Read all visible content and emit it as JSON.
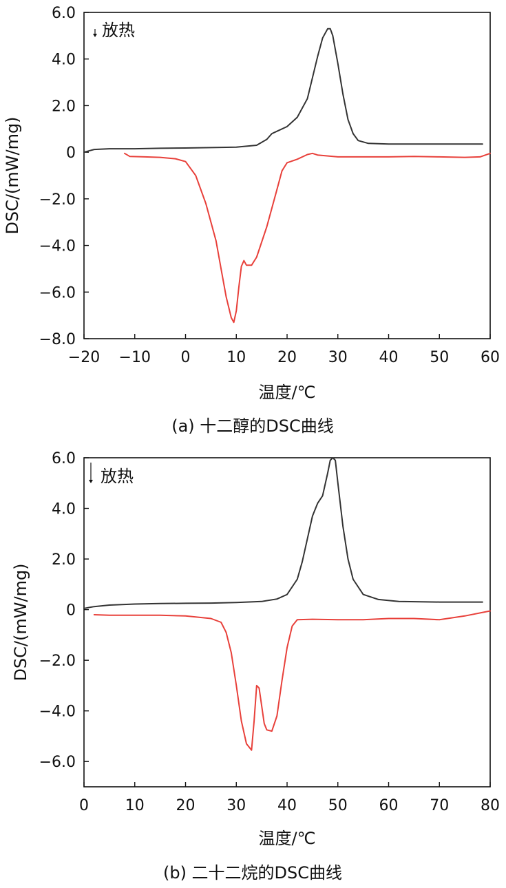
{
  "chart_data": [
    {
      "type": "line",
      "caption": "(a) 十二醇的DSC曲线",
      "xlabel": "温度/℃",
      "ylabel": "DSC/(mW/mg)",
      "annotation": "放热",
      "xlim": [
        -20,
        60
      ],
      "ylim": [
        -8,
        6
      ],
      "xticks": [
        "−20",
        "−10",
        "0",
        "10",
        "20",
        "30",
        "40",
        "50",
        "60"
      ],
      "yticks": [
        "6.0",
        "4.0",
        "2.0",
        "0",
        "−2.0",
        "−4.0",
        "−6.0",
        "−8.0"
      ],
      "xtick_values": [
        -20,
        -10,
        0,
        10,
        20,
        30,
        40,
        50,
        60
      ],
      "ytick_values": [
        6,
        4,
        2,
        0,
        -2,
        -4,
        -6,
        -8
      ],
      "colors": {
        "heating": "#333333",
        "cooling": "#e8403a"
      },
      "series": [
        {
          "x": [
            -20,
            -18,
            -15,
            -10,
            -5,
            0,
            5,
            10,
            14,
            16,
            17,
            18,
            20,
            22,
            24,
            25,
            26,
            27,
            28,
            28.5,
            29,
            30,
            31,
            32,
            33,
            34,
            36,
            40,
            45,
            50,
            55,
            58.5
          ],
          "y": [
            0.0,
            0.12,
            0.15,
            0.15,
            0.17,
            0.18,
            0.2,
            0.22,
            0.3,
            0.55,
            0.8,
            0.9,
            1.1,
            1.5,
            2.3,
            3.2,
            4.1,
            4.9,
            5.3,
            5.3,
            5.0,
            3.8,
            2.5,
            1.4,
            0.8,
            0.5,
            0.38,
            0.35,
            0.35,
            0.35,
            0.35,
            0.35
          ]
        },
        {
          "x": [
            -12,
            -11,
            -8,
            -5,
            -2,
            0,
            2,
            4,
            6,
            7,
            8,
            9,
            9.5,
            10,
            10.5,
            11,
            11.5,
            12,
            13,
            14,
            16,
            18,
            19,
            20,
            22,
            24,
            25,
            26,
            30,
            35,
            40,
            45,
            50,
            55,
            58,
            60
          ],
          "y": [
            -0.05,
            -0.18,
            -0.2,
            -0.22,
            -0.28,
            -0.4,
            -1.0,
            -2.2,
            -3.8,
            -5.0,
            -6.2,
            -7.1,
            -7.3,
            -6.8,
            -5.8,
            -4.9,
            -4.65,
            -4.85,
            -4.85,
            -4.5,
            -3.2,
            -1.6,
            -0.8,
            -0.45,
            -0.3,
            -0.1,
            -0.05,
            -0.12,
            -0.2,
            -0.2,
            -0.2,
            -0.18,
            -0.2,
            -0.22,
            -0.2,
            -0.05
          ]
        }
      ]
    },
    {
      "type": "line",
      "caption": "(b) 二十二烷的DSC曲线",
      "xlabel": "温度/℃",
      "ylabel": "DSC/(mW/mg)",
      "annotation": "放热",
      "xlim": [
        0,
        80
      ],
      "ylim": [
        -7,
        6
      ],
      "xticks": [
        "0",
        "10",
        "20",
        "30",
        "40",
        "50",
        "60",
        "70",
        "80"
      ],
      "yticks": [
        "6.0",
        "4.0",
        "2.0",
        "0",
        "−2.0",
        "−4.0",
        "−6.0"
      ],
      "xtick_values": [
        0,
        10,
        20,
        30,
        40,
        50,
        60,
        70,
        80
      ],
      "ytick_values": [
        6,
        4,
        2,
        0,
        -2,
        -4,
        -6
      ],
      "colors": {
        "heating": "#333333",
        "cooling": "#e8403a"
      },
      "series": [
        {
          "x": [
            0,
            2,
            5,
            10,
            15,
            20,
            25,
            30,
            35,
            38,
            40,
            42,
            43,
            44,
            45,
            46,
            47,
            48,
            48.5,
            49,
            49.5,
            50,
            51,
            52,
            53,
            55,
            58,
            62,
            70,
            78.5
          ],
          "y": [
            0.05,
            0.12,
            0.18,
            0.22,
            0.24,
            0.25,
            0.26,
            0.28,
            0.32,
            0.42,
            0.6,
            1.2,
            1.9,
            2.8,
            3.7,
            4.2,
            4.5,
            5.4,
            5.9,
            6.0,
            5.9,
            5.0,
            3.3,
            2.0,
            1.2,
            0.6,
            0.4,
            0.32,
            0.3,
            0.3
          ]
        },
        {
          "x": [
            2,
            5,
            10,
            15,
            20,
            25,
            27,
            28,
            29,
            30,
            31,
            32,
            33,
            33.5,
            34,
            34.5,
            35,
            35.5,
            36,
            37,
            38,
            39,
            40,
            41,
            42,
            45,
            50,
            55,
            60,
            65,
            70,
            75,
            80
          ],
          "y": [
            -0.2,
            -0.22,
            -0.22,
            -0.22,
            -0.25,
            -0.35,
            -0.5,
            -0.9,
            -1.7,
            -3.0,
            -4.4,
            -5.3,
            -5.55,
            -4.4,
            -3.0,
            -3.1,
            -3.8,
            -4.5,
            -4.75,
            -4.8,
            -4.2,
            -2.8,
            -1.5,
            -0.65,
            -0.4,
            -0.38,
            -0.4,
            -0.4,
            -0.35,
            -0.35,
            -0.4,
            -0.25,
            -0.05
          ]
        }
      ]
    }
  ]
}
